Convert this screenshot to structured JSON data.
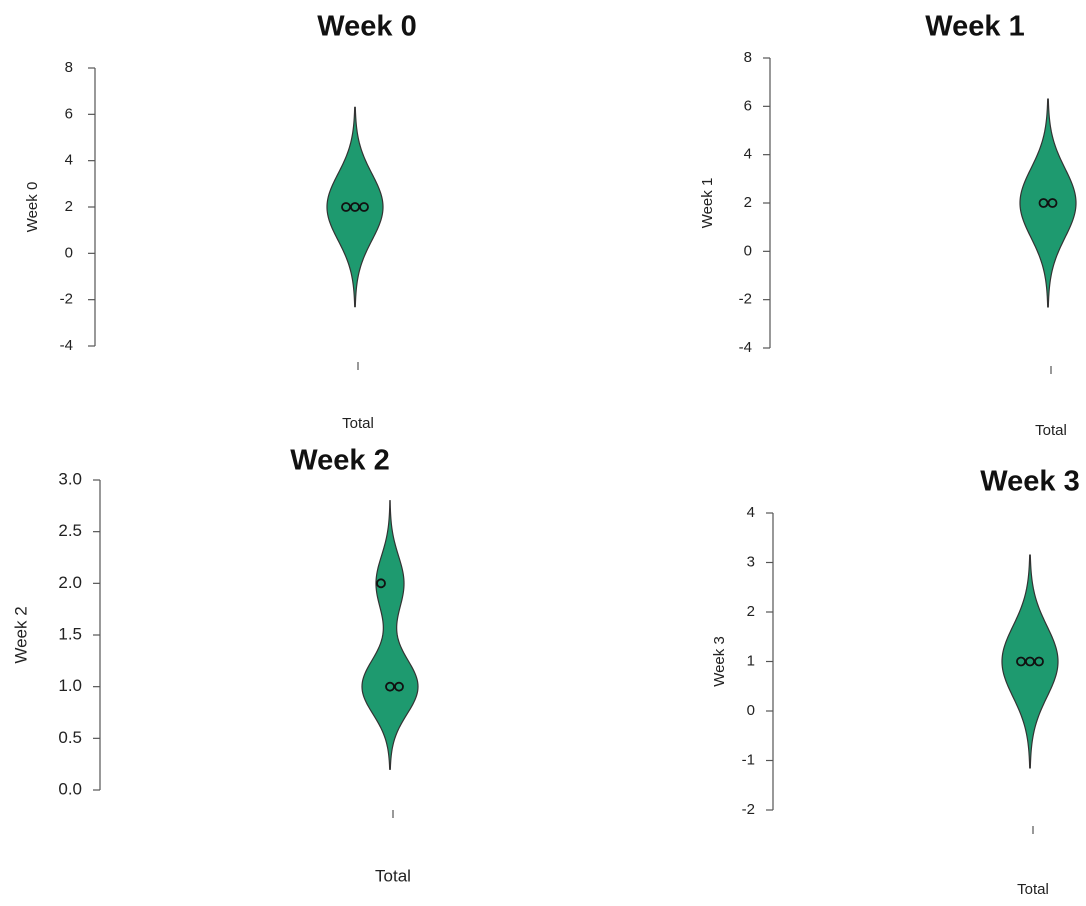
{
  "chart_data": [
    {
      "type": "violin",
      "title": "Week 0",
      "ylabel": "Week 0",
      "categories": [
        "Total"
      ],
      "values": [
        2,
        2,
        2
      ],
      "violin_range": [
        -2.3,
        6.3
      ],
      "color": "#1e9a6f",
      "ylim": [
        -4,
        8
      ],
      "yticks": [
        -4,
        -2,
        0,
        2,
        4,
        6,
        8
      ]
    },
    {
      "type": "violin",
      "title": "Week 1",
      "ylabel": "Week 1",
      "categories": [
        "Total"
      ],
      "values": [
        2,
        2
      ],
      "violin_range": [
        -2.3,
        6.3
      ],
      "color": "#1e9a6f",
      "ylim": [
        -4,
        8
      ],
      "yticks": [
        -4,
        -2,
        0,
        2,
        4,
        6,
        8
      ]
    },
    {
      "type": "violin",
      "title": "Week 2",
      "ylabel": "Week 2",
      "categories": [
        "Total"
      ],
      "values": [
        2,
        1,
        1
      ],
      "violin_range": [
        0.2,
        2.8
      ],
      "color": "#1e9a6f",
      "ylim": [
        0,
        3
      ],
      "yticks": [
        {
          "value": 0,
          "label": "0.0"
        },
        0.5,
        {
          "value": 1,
          "label": "1.0"
        },
        1.5,
        {
          "value": 2,
          "label": "2.0"
        },
        2.5,
        {
          "value": 3,
          "label": "3.0"
        }
      ]
    },
    {
      "type": "violin",
      "title": "Week 3",
      "ylabel": "Week 3",
      "categories": [
        "Total"
      ],
      "values": [
        1,
        1,
        1
      ],
      "violin_range": [
        -1.15,
        3.15
      ],
      "color": "#1e9a6f",
      "ylim": [
        -2,
        4
      ],
      "yticks": [
        -2,
        -1,
        0,
        1,
        2,
        3,
        4
      ]
    }
  ]
}
